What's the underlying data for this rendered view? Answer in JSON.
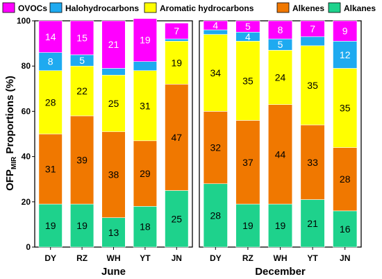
{
  "chart_data": {
    "type": "bar",
    "stacked": true,
    "ylabel_main": "OFP",
    "ylabel_sub": "MIR",
    "ylabel_rest": " Proportions (%)",
    "ylim": [
      0,
      100
    ],
    "yticks": [
      "0",
      "20",
      "40",
      "60",
      "80",
      "100"
    ],
    "legend_position": "top",
    "stack_order": [
      "Alkanes",
      "Alkenes",
      "Aromatic hydrocarbons",
      "Halohydrocarbons",
      "OVOCs"
    ],
    "legend_order": [
      "OVOCs",
      "Halohydrocarbons",
      "Aromatic hydrocarbons",
      "Alkenes",
      "Alkanes"
    ],
    "colors": {
      "OVOCs": "#ff00ff",
      "Halohydrocarbons": "#1eaaf0",
      "Aromatic hydrocarbons": "#ffff00",
      "Alkenes": "#f07800",
      "Alkanes": "#1ed28c"
    },
    "panels": [
      {
        "title": "June",
        "categories": [
          "DY",
          "RZ",
          "WH",
          "YT",
          "JN"
        ],
        "values": {
          "Alkanes": [
            19,
            19,
            13,
            18,
            25
          ],
          "Alkenes": [
            31,
            39,
            38,
            29,
            47
          ],
          "Aromatic hydrocarbons": [
            28,
            22,
            25,
            31,
            19
          ],
          "Halohydrocarbons": [
            8,
            5,
            3,
            4,
            1
          ],
          "OVOCs": [
            14,
            15,
            21,
            19,
            7
          ]
        },
        "labels": {
          "Alkanes": [
            "19",
            "19",
            "13",
            "18",
            "25"
          ],
          "Alkenes": [
            "31",
            "39",
            "38",
            "29",
            "47"
          ],
          "Aromatic hydrocarbons": [
            "28",
            "22",
            "25",
            "31",
            "19"
          ],
          "Halohydrocarbons": [
            "8",
            "5",
            "",
            "",
            ""
          ],
          "OVOCs": [
            "14",
            "15",
            "21",
            "19",
            "7"
          ]
        }
      },
      {
        "title": "December",
        "categories": [
          "DY",
          "RZ",
          "WH",
          "YT",
          "JN"
        ],
        "values": {
          "Alkanes": [
            28,
            19,
            19,
            21,
            16
          ],
          "Alkenes": [
            32,
            37,
            44,
            33,
            28
          ],
          "Aromatic hydrocarbons": [
            34,
            35,
            24,
            35,
            35
          ],
          "Halohydrocarbons": [
            2,
            4,
            5,
            4,
            12
          ],
          "OVOCs": [
            4,
            5,
            8,
            7,
            9
          ]
        },
        "labels": {
          "Alkanes": [
            "28",
            "19",
            "19",
            "21",
            "16"
          ],
          "Alkenes": [
            "32",
            "37",
            "44",
            "33",
            "28"
          ],
          "Aromatic hydrocarbons": [
            "34",
            "35",
            "24",
            "35",
            "35"
          ],
          "Halohydrocarbons": [
            "",
            "4",
            "5",
            "",
            "12"
          ],
          "OVOCs": [
            "4",
            "5",
            "8",
            "7",
            "9"
          ]
        }
      }
    ]
  }
}
